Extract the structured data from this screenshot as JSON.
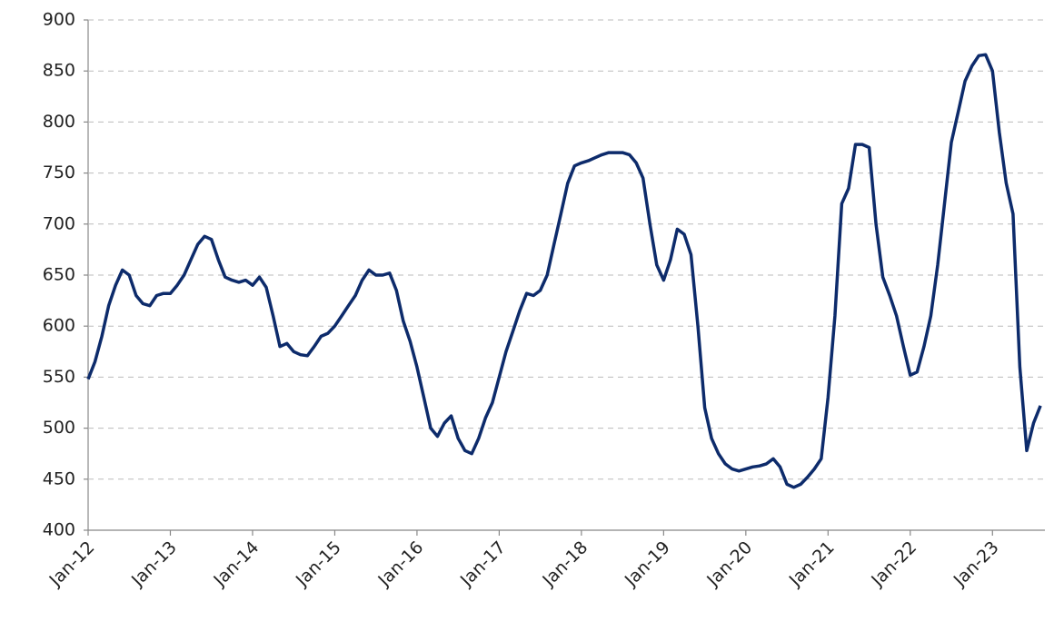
{
  "chart_data": {
    "type": "line",
    "categories": [
      "Jan-12",
      null,
      null,
      null,
      null,
      null,
      null,
      null,
      null,
      null,
      null,
      null,
      "Jan-13",
      null,
      null,
      null,
      null,
      null,
      null,
      null,
      null,
      null,
      null,
      null,
      "Jan-14",
      null,
      null,
      null,
      null,
      null,
      null,
      null,
      null,
      null,
      null,
      null,
      "Jan-15",
      null,
      null,
      null,
      null,
      null,
      null,
      null,
      null,
      null,
      null,
      null,
      "Jan-16",
      null,
      null,
      null,
      null,
      null,
      null,
      null,
      null,
      null,
      null,
      null,
      "Jan-17",
      null,
      null,
      null,
      null,
      null,
      null,
      null,
      null,
      null,
      null,
      null,
      "Jan-18",
      null,
      null,
      null,
      null,
      null,
      null,
      null,
      null,
      null,
      null,
      null,
      "Jan-19",
      null,
      null,
      null,
      null,
      null,
      null,
      null,
      null,
      null,
      null,
      null,
      "Jan-20",
      null,
      null,
      null,
      null,
      null,
      null,
      null,
      null,
      null,
      null,
      null,
      "Jan-21",
      null,
      null,
      null,
      null,
      null,
      null,
      null,
      null,
      null,
      null,
      null,
      "Jan-22",
      null,
      null,
      null,
      null,
      null,
      null,
      null,
      null,
      null,
      null,
      null,
      "Jan-23",
      null,
      null,
      null,
      null,
      null,
      null,
      null
    ],
    "values": [
      548,
      565,
      590,
      620,
      640,
      655,
      650,
      630,
      622,
      620,
      630,
      632,
      632,
      640,
      650,
      665,
      680,
      688,
      685,
      665,
      648,
      645,
      643,
      645,
      640,
      648,
      638,
      610,
      580,
      583,
      575,
      572,
      571,
      580,
      590,
      593,
      600,
      610,
      620,
      630,
      645,
      655,
      650,
      650,
      652,
      635,
      605,
      585,
      560,
      530,
      500,
      492,
      505,
      512,
      490,
      478,
      475,
      490,
      510,
      525,
      550,
      575,
      595,
      615,
      632,
      630,
      635,
      650,
      680,
      710,
      740,
      757,
      760,
      762,
      765,
      768,
      770,
      770,
      770,
      768,
      760,
      745,
      700,
      660,
      645,
      665,
      695,
      690,
      670,
      600,
      520,
      490,
      475,
      465,
      460,
      458,
      460,
      462,
      463,
      465,
      470,
      462,
      445,
      442,
      445,
      452,
      460,
      470,
      530,
      610,
      720,
      735,
      778,
      778,
      775,
      700,
      648,
      630,
      610,
      580,
      552,
      555,
      580,
      610,
      660,
      720,
      780,
      810,
      840,
      855,
      865,
      866,
      850,
      790,
      740,
      710,
      560,
      478,
      505,
      522
    ],
    "color": "#0d2b6b",
    "ylim": [
      400,
      900
    ],
    "yticks": [
      400,
      450,
      500,
      550,
      600,
      650,
      700,
      750,
      800,
      850,
      900
    ],
    "grid": true
  }
}
